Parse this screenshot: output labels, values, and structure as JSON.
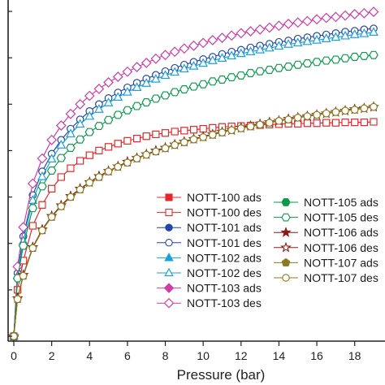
{
  "chart_data": {
    "type": "line",
    "xlabel": "Pressure (bar)",
    "xlim": [
      0,
      19
    ],
    "x_ticks": [
      "0",
      "2",
      "4",
      "6",
      "8",
      "10",
      "12",
      "14",
      "16",
      "18"
    ],
    "ylim": [
      0,
      7
    ],
    "y_tick_count": 8,
    "grid": false,
    "legend_placement": "center-right, two columns",
    "x": [
      0,
      0.2,
      0.5,
      1,
      1.5,
      2,
      2.5,
      3,
      3.5,
      4,
      4.5,
      5,
      5.5,
      6,
      6.5,
      7,
      7.5,
      8,
      8.5,
      9,
      9.5,
      10,
      10.5,
      11,
      11.5,
      12,
      12.5,
      13,
      13.5,
      14,
      14.5,
      15,
      15.5,
      16,
      16.5,
      17,
      17.5,
      18,
      18.5,
      19
    ],
    "series": [
      {
        "name": "NOTT-100 ads",
        "color": "#e8262a",
        "marker": "square",
        "filled": true,
        "values": [
          0,
          1.0,
          1.63,
          2.38,
          2.83,
          3.18,
          3.43,
          3.62,
          3.78,
          3.9,
          4.0,
          4.08,
          4.15,
          4.21,
          4.26,
          4.31,
          4.35,
          4.38,
          4.41,
          4.43,
          4.45,
          4.47,
          4.49,
          4.51,
          4.52,
          4.53,
          4.54,
          4.55,
          4.56,
          4.57,
          4.58,
          4.58,
          4.59,
          4.59,
          4.6,
          4.6,
          4.61,
          4.61,
          4.61,
          4.62
        ]
      },
      {
        "name": "NOTT-100 des",
        "color": "#e8262a",
        "marker": "square",
        "filled": false,
        "values": [
          0,
          1.0,
          1.63,
          2.38,
          2.83,
          3.18,
          3.43,
          3.62,
          3.78,
          3.9,
          4.0,
          4.08,
          4.15,
          4.21,
          4.26,
          4.31,
          4.35,
          4.38,
          4.41,
          4.43,
          4.45,
          4.47,
          4.49,
          4.51,
          4.52,
          4.53,
          4.54,
          4.55,
          4.56,
          4.57,
          4.58,
          4.58,
          4.59,
          4.59,
          4.6,
          4.6,
          4.61,
          4.61,
          4.61,
          4.62
        ]
      },
      {
        "name": "NOTT-101 ads",
        "color": "#2544a8",
        "marker": "circle",
        "filled": true,
        "values": [
          0,
          1.36,
          2.15,
          3.04,
          3.55,
          3.93,
          4.23,
          4.47,
          4.67,
          4.85,
          5.0,
          5.13,
          5.25,
          5.36,
          5.46,
          5.55,
          5.63,
          5.71,
          5.78,
          5.85,
          5.91,
          5.97,
          6.02,
          6.08,
          6.13,
          6.17,
          6.22,
          6.26,
          6.3,
          6.34,
          6.37,
          6.41,
          6.44,
          6.47,
          6.5,
          6.53,
          6.56,
          6.58,
          6.61,
          6.63
        ]
      },
      {
        "name": "NOTT-101 des",
        "color": "#2544a8",
        "marker": "circle",
        "filled": false,
        "values": [
          0,
          1.36,
          2.15,
          3.04,
          3.55,
          3.93,
          4.23,
          4.47,
          4.67,
          4.85,
          5.0,
          5.13,
          5.25,
          5.36,
          5.46,
          5.55,
          5.63,
          5.71,
          5.78,
          5.85,
          5.91,
          5.97,
          6.02,
          6.08,
          6.13,
          6.17,
          6.22,
          6.26,
          6.3,
          6.34,
          6.37,
          6.41,
          6.44,
          6.47,
          6.5,
          6.53,
          6.56,
          6.58,
          6.61,
          6.63
        ]
      },
      {
        "name": "NOTT-102 ads",
        "color": "#1aa0dc",
        "marker": "triangle",
        "filled": true,
        "values": [
          0,
          1.3,
          2.05,
          2.93,
          3.44,
          3.82,
          4.12,
          4.36,
          4.57,
          4.74,
          4.89,
          5.03,
          5.15,
          5.26,
          5.36,
          5.45,
          5.54,
          5.62,
          5.69,
          5.76,
          5.82,
          5.88,
          5.94,
          5.99,
          6.04,
          6.09,
          6.13,
          6.17,
          6.21,
          6.25,
          6.29,
          6.32,
          6.35,
          6.38,
          6.41,
          6.44,
          6.47,
          6.5,
          6.52,
          6.55
        ]
      },
      {
        "name": "NOTT-102 des",
        "color": "#1aa0dc",
        "marker": "triangle",
        "filled": false,
        "values": [
          0,
          1.3,
          2.05,
          2.93,
          3.44,
          3.82,
          4.12,
          4.36,
          4.57,
          4.74,
          4.89,
          5.03,
          5.15,
          5.26,
          5.36,
          5.45,
          5.54,
          5.62,
          5.69,
          5.76,
          5.82,
          5.88,
          5.94,
          5.99,
          6.04,
          6.09,
          6.13,
          6.17,
          6.21,
          6.25,
          6.29,
          6.32,
          6.35,
          6.38,
          6.41,
          6.44,
          6.47,
          6.5,
          6.52,
          6.55
        ]
      },
      {
        "name": "NOTT-103 ads",
        "color": "#cf3ca6",
        "marker": "diamond",
        "filled": true,
        "values": [
          0,
          1.5,
          2.35,
          3.29,
          3.83,
          4.23,
          4.54,
          4.79,
          5.0,
          5.18,
          5.33,
          5.47,
          5.59,
          5.7,
          5.8,
          5.89,
          5.98,
          6.06,
          6.13,
          6.2,
          6.26,
          6.32,
          6.38,
          6.43,
          6.48,
          6.53,
          6.57,
          6.61,
          6.65,
          6.69,
          6.73,
          6.76,
          6.79,
          6.83,
          6.86,
          6.88,
          6.91,
          6.94,
          6.96,
          6.99
        ]
      },
      {
        "name": "NOTT-103 des",
        "color": "#cf3ca6",
        "marker": "diamond",
        "filled": false,
        "values": [
          0,
          1.5,
          2.35,
          3.29,
          3.83,
          4.23,
          4.54,
          4.79,
          5.0,
          5.18,
          5.33,
          5.47,
          5.59,
          5.7,
          5.8,
          5.89,
          5.98,
          6.06,
          6.13,
          6.2,
          6.26,
          6.32,
          6.38,
          6.43,
          6.48,
          6.53,
          6.57,
          6.61,
          6.65,
          6.69,
          6.73,
          6.76,
          6.79,
          6.83,
          6.86,
          6.88,
          6.91,
          6.94,
          6.96,
          6.99
        ]
      },
      {
        "name": "NOTT-105 ads",
        "color": "#0a9a4a",
        "marker": "hexagon",
        "filled": true,
        "values": [
          0,
          1.25,
          1.95,
          2.76,
          3.23,
          3.57,
          3.84,
          4.06,
          4.24,
          4.4,
          4.53,
          4.66,
          4.77,
          4.87,
          4.96,
          5.04,
          5.12,
          5.19,
          5.26,
          5.32,
          5.38,
          5.43,
          5.49,
          5.53,
          5.58,
          5.62,
          5.67,
          5.71,
          5.74,
          5.78,
          5.81,
          5.85,
          5.88,
          5.91,
          5.94,
          5.96,
          5.99,
          6.02,
          6.04,
          6.06
        ]
      },
      {
        "name": "NOTT-105 des",
        "color": "#0a9a4a",
        "marker": "hexagon",
        "filled": false,
        "values": [
          0,
          1.25,
          1.95,
          2.76,
          3.23,
          3.57,
          3.84,
          4.06,
          4.24,
          4.4,
          4.53,
          4.66,
          4.77,
          4.87,
          4.96,
          5.04,
          5.12,
          5.19,
          5.26,
          5.32,
          5.38,
          5.43,
          5.49,
          5.53,
          5.58,
          5.62,
          5.67,
          5.71,
          5.74,
          5.78,
          5.81,
          5.85,
          5.88,
          5.91,
          5.94,
          5.96,
          5.99,
          6.02,
          6.04,
          6.06
        ]
      },
      {
        "name": "NOTT-106 ads",
        "color": "#8b1a1a",
        "marker": "star",
        "filled": true,
        "values": [
          0,
          0.82,
          1.32,
          1.92,
          2.3,
          2.59,
          2.82,
          3.02,
          3.18,
          3.32,
          3.45,
          3.56,
          3.66,
          3.76,
          3.84,
          3.92,
          4.0,
          4.06,
          4.13,
          4.19,
          4.25,
          4.3,
          4.35,
          4.4,
          4.44,
          4.49,
          4.53,
          4.57,
          4.61,
          4.64,
          4.68,
          4.71,
          4.74,
          4.77,
          4.8,
          4.83,
          4.86,
          4.89,
          4.91,
          4.94
        ]
      },
      {
        "name": "NOTT-106 des",
        "color": "#8b1a1a",
        "marker": "star",
        "filled": false,
        "values": [
          0,
          0.82,
          1.32,
          1.92,
          2.3,
          2.59,
          2.82,
          3.02,
          3.18,
          3.32,
          3.45,
          3.56,
          3.66,
          3.76,
          3.84,
          3.92,
          4.0,
          4.06,
          4.13,
          4.19,
          4.25,
          4.3,
          4.35,
          4.4,
          4.44,
          4.49,
          4.53,
          4.57,
          4.61,
          4.64,
          4.68,
          4.71,
          4.74,
          4.77,
          4.8,
          4.83,
          4.86,
          4.89,
          4.91,
          4.94
        ]
      },
      {
        "name": "NOTT-107 ads",
        "color": "#8c7a22",
        "marker": "pentagon",
        "filled": true,
        "values": [
          0,
          0.8,
          1.3,
          1.9,
          2.28,
          2.57,
          2.8,
          3.0,
          3.16,
          3.31,
          3.43,
          3.55,
          3.65,
          3.74,
          3.83,
          3.91,
          3.98,
          4.05,
          4.12,
          4.18,
          4.24,
          4.29,
          4.34,
          4.39,
          4.44,
          4.48,
          4.52,
          4.56,
          4.6,
          4.64,
          4.67,
          4.71,
          4.74,
          4.77,
          4.8,
          4.83,
          4.86,
          4.88,
          4.91,
          4.94
        ]
      },
      {
        "name": "NOTT-107 des",
        "color": "#8c7a22",
        "marker": "circle",
        "filled": false,
        "values": [
          0,
          0.8,
          1.3,
          1.9,
          2.28,
          2.57,
          2.8,
          3.0,
          3.16,
          3.31,
          3.43,
          3.55,
          3.65,
          3.74,
          3.83,
          3.91,
          3.98,
          4.05,
          4.12,
          4.18,
          4.24,
          4.29,
          4.34,
          4.39,
          4.44,
          4.48,
          4.52,
          4.56,
          4.6,
          4.64,
          4.67,
          4.71,
          4.74,
          4.77,
          4.8,
          4.83,
          4.86,
          4.88,
          4.91,
          4.94
        ]
      }
    ]
  }
}
